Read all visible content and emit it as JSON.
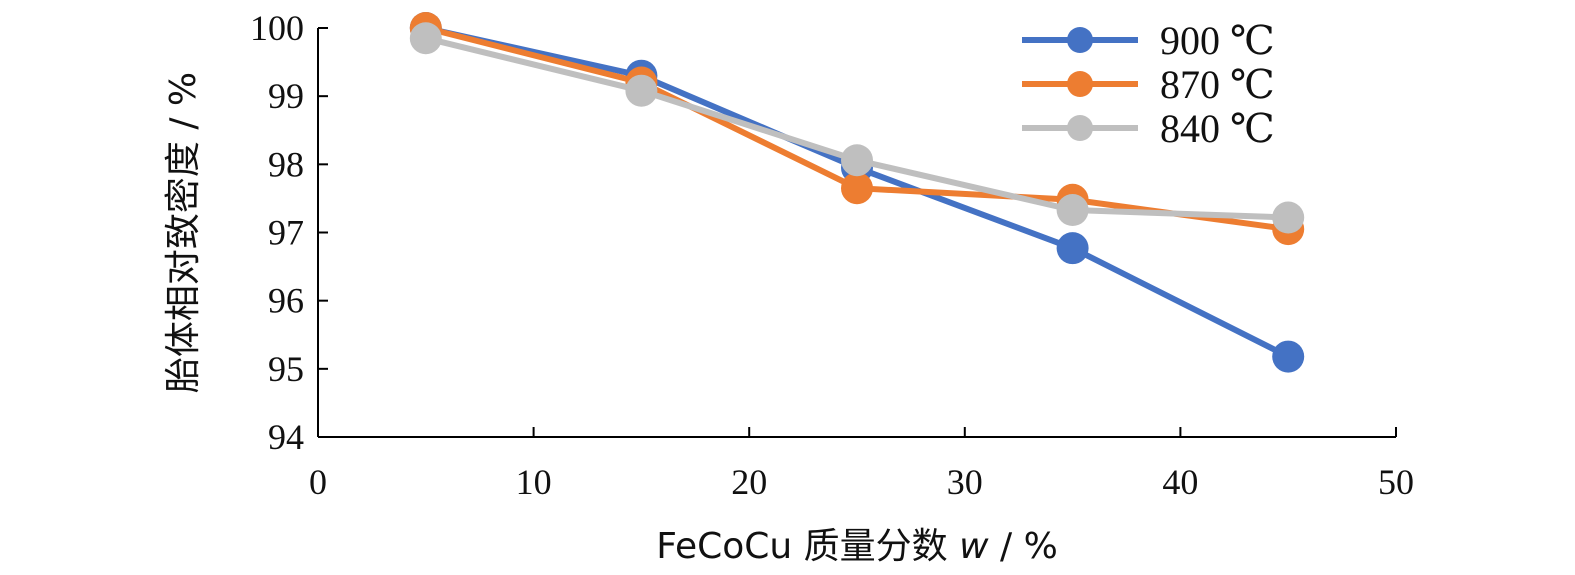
{
  "chart_data": {
    "type": "line",
    "xlabel": {
      "prefix": "FeCoCu 质量分数 ",
      "var": "w",
      "suffix": " / %"
    },
    "ylabel": "胎体相对致密度 / %",
    "xlim": [
      0,
      50
    ],
    "ylim": [
      94,
      100
    ],
    "x_ticks": [
      "0",
      "10",
      "20",
      "30",
      "40",
      "50"
    ],
    "y_ticks": [
      "94",
      "95",
      "96",
      "97",
      "98",
      "99",
      "100"
    ],
    "x": [
      5,
      15,
      25,
      35,
      45
    ],
    "grid": false,
    "legend_position": "top-right",
    "series": [
      {
        "name": "900 ℃",
        "color": "#4472C4",
        "values": [
          100.0,
          99.3,
          97.95,
          96.77,
          95.18
        ]
      },
      {
        "name": "870 ℃",
        "color": "#ED7D31",
        "values": [
          100.0,
          99.2,
          97.65,
          97.48,
          97.05
        ]
      },
      {
        "name": "840 ℃",
        "color": "#BFBFBF",
        "values": [
          99.85,
          99.08,
          98.06,
          97.33,
          97.22
        ]
      }
    ]
  }
}
